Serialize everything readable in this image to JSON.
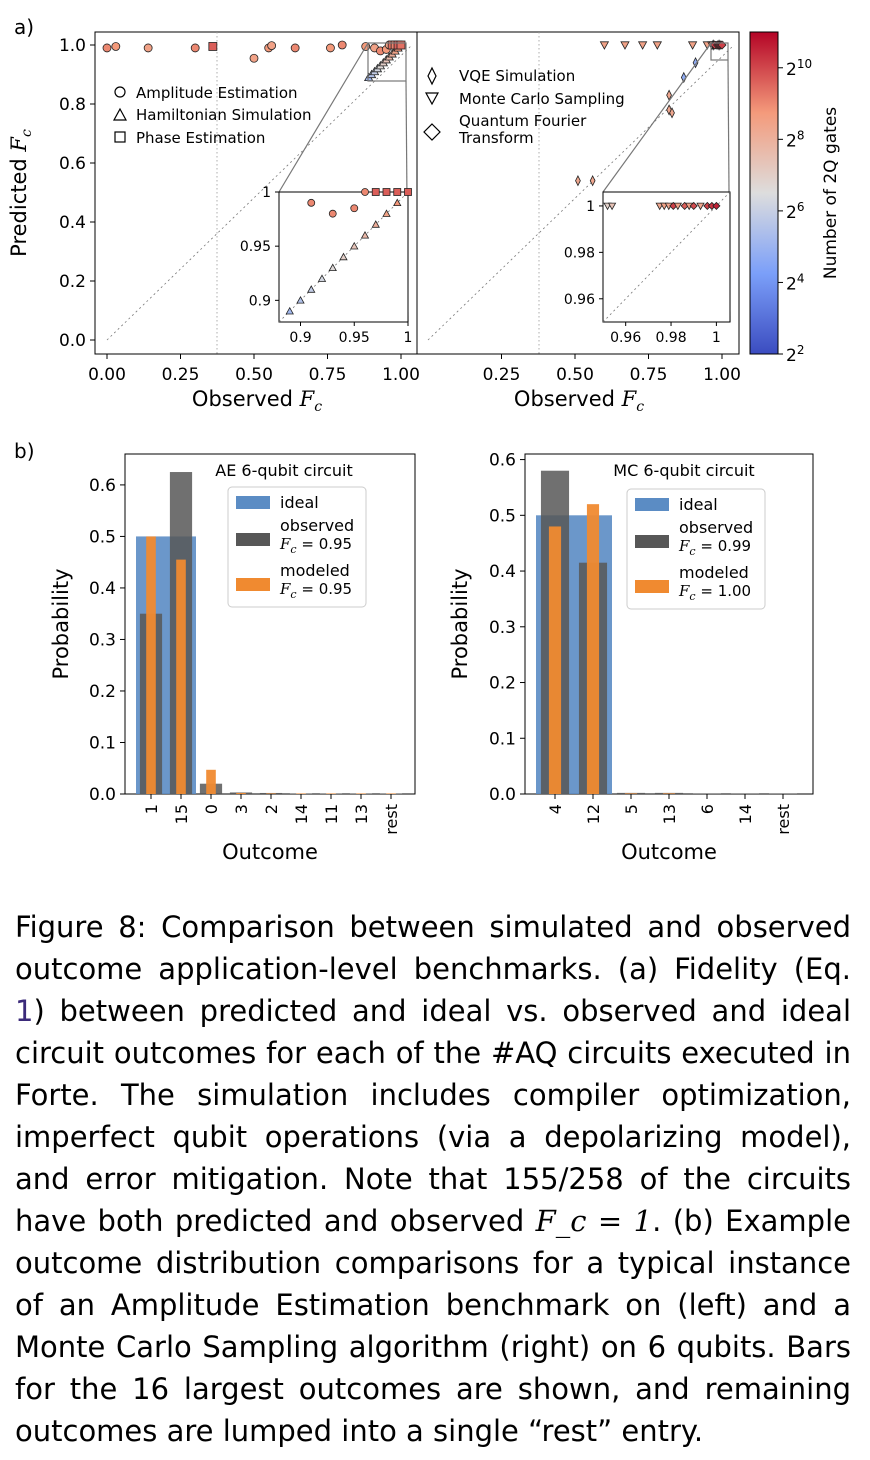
{
  "panel_a": {
    "label": "a)",
    "left": {
      "ylabel_text": "Predicted",
      "xlabel_text": "Observed",
      "fc_symbol": "F",
      "fc_sub": "c",
      "xticks": [
        "0.00",
        "0.25",
        "0.50",
        "0.75",
        "1.00"
      ],
      "yticks": [
        "0.0",
        "0.2",
        "0.4",
        "0.6",
        "0.8",
        "1.0"
      ],
      "legend": [
        "Amplitude Estimation",
        "Hamiltonian Simulation",
        "Phase Estimation"
      ],
      "inset": {
        "xticks": [
          "0.9",
          "0.95",
          "1"
        ],
        "yticks": [
          "0.9",
          "0.95",
          "1"
        ]
      }
    },
    "right": {
      "xlabel_text": "Observed",
      "xticks": [
        "0.25",
        "0.50",
        "0.75",
        "1.00"
      ],
      "legend": [
        "VQE Simulation",
        "Monte Carlo Sampling",
        "Quantum Fourier",
        "Transform"
      ],
      "inset": {
        "xticks": [
          "0.96",
          "0.98",
          "1"
        ],
        "yticks": [
          "0.96",
          "0.98",
          "1"
        ]
      }
    },
    "colorbar": {
      "label": "Number of 2Q gates",
      "ticks": [
        {
          "base": "2",
          "exp": "10"
        },
        {
          "base": "2",
          "exp": "8"
        },
        {
          "base": "2",
          "exp": "6"
        },
        {
          "base": "2",
          "exp": "4"
        },
        {
          "base": "2",
          "exp": "2"
        }
      ]
    }
  },
  "panel_b": {
    "label": "b)",
    "ylabel": "Probability",
    "xlabel": "Outcome",
    "legend": {
      "ideal": "ideal",
      "observed": "observed",
      "modeled": "modeled",
      "fc_eq": "= "
    },
    "colors": {
      "ideal": "#5b8cc4",
      "observed": "#575757",
      "modeled": "#f08a30"
    }
  },
  "chart_data": [
    {
      "type": "scatter",
      "xlabel": "Observed F_c",
      "ylabel": "Predicted F_c",
      "xlim": [
        -0.02,
        1.0
      ],
      "ylim": [
        -0.02,
        1.02
      ],
      "reference_line": "y = x (dotted)",
      "vertical_line_x": 0.37,
      "series": [
        {
          "name": "Amplitude Estimation",
          "marker": "circle",
          "points": [
            [
              0.0,
              0.99
            ],
            [
              0.03,
              0.995
            ],
            [
              0.14,
              0.99
            ],
            [
              0.3,
              0.99
            ],
            [
              0.55,
              0.99
            ],
            [
              0.56,
              0.998
            ],
            [
              0.64,
              0.99
            ],
            [
              0.76,
              0.99
            ],
            [
              0.5,
              0.955
            ],
            [
              0.8,
              1.0
            ],
            [
              0.88,
              0.995
            ],
            [
              0.91,
              0.99
            ],
            [
              0.93,
              0.98
            ],
            [
              0.95,
              0.985
            ],
            [
              0.96,
              1.0
            ]
          ]
        },
        {
          "name": "Hamiltonian Simulation",
          "marker": "triangle",
          "points": [
            [
              0.89,
              0.89
            ],
            [
              0.9,
              0.9
            ],
            [
              0.91,
              0.91
            ],
            [
              0.92,
              0.92
            ],
            [
              0.93,
              0.93
            ],
            [
              0.94,
              0.94
            ],
            [
              0.95,
              0.95
            ],
            [
              0.96,
              0.96
            ],
            [
              0.97,
              0.97
            ],
            [
              0.98,
              0.98
            ],
            [
              0.99,
              0.99
            ]
          ]
        },
        {
          "name": "Phase Estimation",
          "marker": "square",
          "points": [
            [
              0.36,
              0.995
            ],
            [
              0.97,
              1.0
            ],
            [
              0.98,
              1.0
            ],
            [
              0.99,
              1.0
            ],
            [
              1.0,
              1.0
            ]
          ]
        }
      ]
    },
    {
      "type": "scatter",
      "xlabel": "Observed F_c",
      "xlim": [
        -0.02,
        1.03
      ],
      "ylim": [
        -0.02,
        1.02
      ],
      "reference_line": "y = x (dotted)",
      "vertical_line_x": 0.37,
      "series": [
        {
          "name": "VQE Simulation",
          "marker": "thin-diamond",
          "points": [
            [
              0.51,
              0.54
            ],
            [
              0.56,
              0.54
            ],
            [
              0.82,
              0.78
            ],
            [
              0.82,
              0.83
            ],
            [
              0.83,
              0.77
            ],
            [
              0.87,
              0.89
            ],
            [
              0.91,
              0.94
            ],
            [
              0.97,
              1.0
            ],
            [
              0.99,
              1.0
            ]
          ]
        },
        {
          "name": "Monte Carlo Sampling",
          "marker": "triangle-down",
          "points": [
            [
              0.6,
              1.0
            ],
            [
              0.67,
              1.0
            ],
            [
              0.73,
              1.0
            ],
            [
              0.78,
              1.0
            ],
            [
              0.9,
              1.0
            ],
            [
              0.95,
              1.0
            ],
            [
              0.965,
              1.0
            ],
            [
              0.97,
              1.0
            ],
            [
              0.98,
              1.0
            ],
            [
              0.99,
              1.0
            ]
          ]
        },
        {
          "name": "Quantum Fourier Transform",
          "marker": "diamond",
          "points": [
            [
              0.975,
              1.0
            ],
            [
              0.985,
              1.0
            ],
            [
              0.99,
              1.0
            ],
            [
              0.995,
              1.0
            ],
            [
              1.0,
              1.0
            ]
          ]
        }
      ],
      "colorbar": {
        "label": "Number of 2Q gates",
        "scale": "log2",
        "range_exp": [
          2,
          11
        ],
        "ticks_exp": [
          2,
          4,
          6,
          8,
          10
        ]
      }
    },
    {
      "type": "bar",
      "title": "AE 6-qubit circuit",
      "xlabel": "Outcome",
      "ylabel": "Probability",
      "categories": [
        "1",
        "15",
        "0",
        "3",
        "2",
        "14",
        "11",
        "13",
        "rest"
      ],
      "ylim": [
        0,
        0.66
      ],
      "yticks": [
        "0.0",
        "0.1",
        "0.2",
        "0.3",
        "0.4",
        "0.5",
        "0.6"
      ],
      "series": [
        {
          "name": "ideal",
          "values": [
            0.5,
            0.5,
            0,
            0,
            0,
            0,
            0,
            0,
            0
          ]
        },
        {
          "name": "observed",
          "fc": "F_c = 0.95",
          "values": [
            0.35,
            0.625,
            0.02,
            0.003,
            0.002,
            0.001,
            0.001,
            0.001,
            0.001
          ]
        },
        {
          "name": "modeled",
          "fc": "F_c = 0.95",
          "values": [
            0.5,
            0.455,
            0.047,
            0.002,
            0.001,
            0.001,
            0.001,
            0.001,
            0.001
          ]
        }
      ]
    },
    {
      "type": "bar",
      "title": "MC 6-qubit circuit",
      "xlabel": "Outcome",
      "ylabel": "Probability",
      "categories": [
        "4",
        "12",
        "5",
        "13",
        "6",
        "14",
        "rest"
      ],
      "ylim": [
        0,
        0.61
      ],
      "yticks": [
        "0.0",
        "0.1",
        "0.2",
        "0.3",
        "0.4",
        "0.5",
        "0.6"
      ],
      "series": [
        {
          "name": "ideal",
          "values": [
            0.5,
            0.5,
            0,
            0,
            0,
            0,
            0
          ]
        },
        {
          "name": "observed",
          "fc": "F_c = 0.99",
          "values": [
            0.58,
            0.415,
            0.002,
            0.002,
            0.001,
            0.001,
            0.001
          ]
        },
        {
          "name": "modeled",
          "fc": "F_c = 1.00",
          "values": [
            0.48,
            0.52,
            0.001,
            0.001,
            0.0,
            0.0,
            0.0
          ]
        }
      ]
    }
  ],
  "caption": {
    "prefix": "Figure 8:  Comparison between simulated and observed outcome application-level benchmarks. (a) Fidelity (Eq. ",
    "eq_ref": "1",
    "part2": ") between predicted and ideal vs.  observed and ideal circuit outcomes for each of the #AQ circuits executed in Forte. The simulation includes compiler optimization, imperfect qubit operations (via a depolarizing model), and error mitigation.  Note that 155/258 of the circuits have both predicted and observed ",
    "math": "F_c = 1",
    "part3": ".  (b) Example outcome distribution comparisons for a typical instance of an Amplitude Estimation benchmark on (left) and a Monte Carlo Sampling algorithm (right) on 6 qubits. Bars for the 16 largest outcomes are shown, and remaining outcomes are lumped into a single “rest” entry."
  }
}
